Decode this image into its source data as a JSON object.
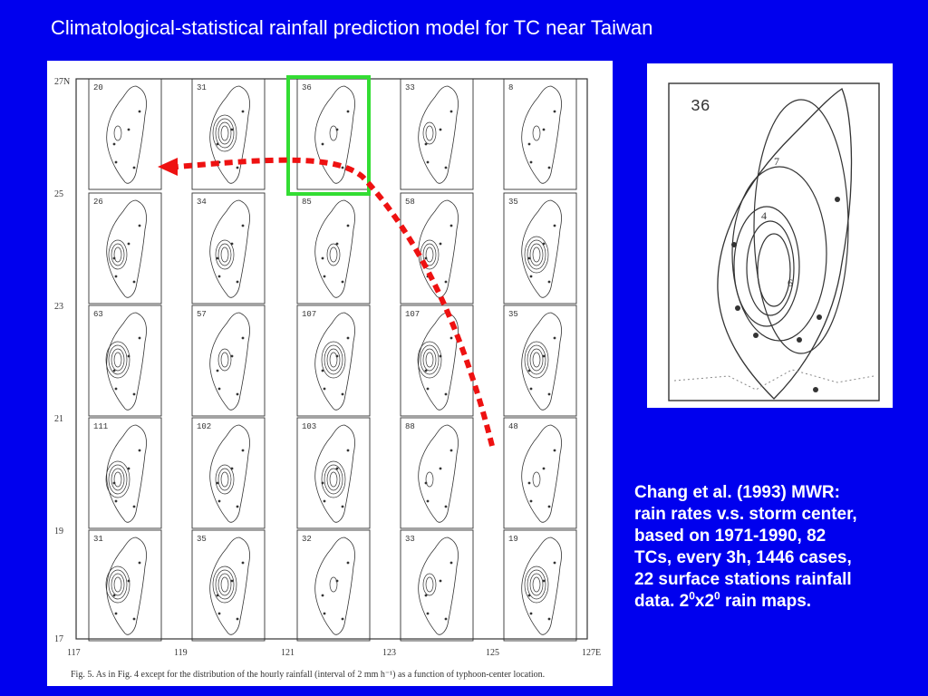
{
  "slide": {
    "title": "Climatological-statistical rainfall prediction model for TC near Taiwan",
    "colors": {
      "background": "#0000ee",
      "text": "#ffffff",
      "highlight": "#33dd33",
      "arrow": "#ee1111"
    }
  },
  "figure": {
    "lat_labels": [
      "27N",
      "25",
      "23",
      "21",
      "19",
      "17"
    ],
    "lon_labels": [
      "117",
      "119",
      "121",
      "123",
      "125",
      "127E"
    ],
    "panel_counts": [
      [
        "20",
        "31",
        "36",
        "33",
        "8"
      ],
      [
        "26",
        "34",
        "85",
        "58",
        "35"
      ],
      [
        "63",
        "57",
        "107",
        "107",
        "35"
      ],
      [
        "111",
        "102",
        "103",
        "88",
        "48"
      ],
      [
        "31",
        "35",
        "32",
        "33",
        "19"
      ]
    ],
    "caption_prefix": "Fig. 5.",
    "caption_text": "As in Fig. 4 except for the distribution of the hourly rainfall (interval of 2 mm h⁻¹) as a function of typhoon-center location.",
    "highlighted_panel": {
      "row": 0,
      "col": 2
    }
  },
  "inset": {
    "panel_count": "36",
    "contour_labels": [
      "7",
      "4",
      "6"
    ]
  },
  "notes": {
    "line1": "Chang et al. (1993) MWR:",
    "line2": "rain rates v.s. storm center,",
    "line3": "based on 1971-1990, 82",
    "line4": "TCs, every 3h, 1446 cases,",
    "line5": "22 surface stations rainfall",
    "line6_prefix": "data. 2",
    "sup1": "0",
    "line6_mid": "x2",
    "sup2": "0",
    "line6_suffix": " rain maps."
  }
}
